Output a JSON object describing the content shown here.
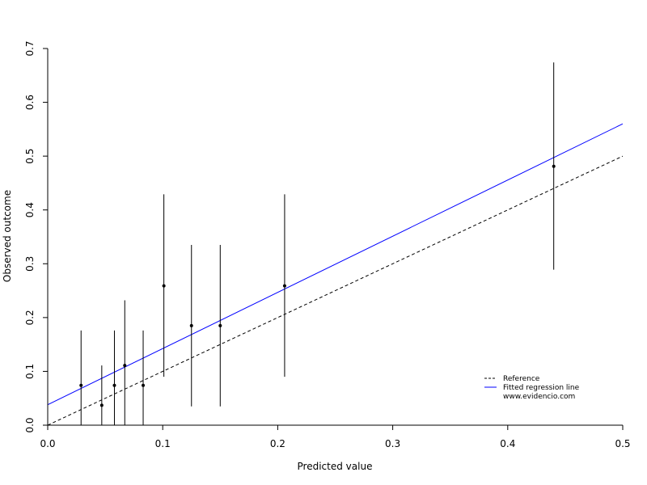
{
  "chart_data": {
    "type": "scatter",
    "title": "",
    "xlabel": "Predicted value",
    "ylabel": "Observed outcome",
    "xlim": [
      0,
      0.5
    ],
    "ylim": [
      0,
      0.7
    ],
    "x_ticks": [
      "0.0",
      "0.1",
      "0.2",
      "0.3",
      "0.4",
      "0.5"
    ],
    "y_ticks": [
      "0.0",
      "0.1",
      "0.2",
      "0.3",
      "0.4",
      "0.5",
      "0.6",
      "0.7"
    ],
    "grid": false,
    "legend_position": "bottom-right",
    "points": [
      {
        "x": 0.029,
        "y": 0.074,
        "lower": 0.0,
        "upper": 0.176
      },
      {
        "x": 0.047,
        "y": 0.037,
        "lower": 0.0,
        "upper": 0.111
      },
      {
        "x": 0.058,
        "y": 0.074,
        "lower": 0.0,
        "upper": 0.176
      },
      {
        "x": 0.067,
        "y": 0.111,
        "lower": 0.0,
        "upper": 0.232
      },
      {
        "x": 0.083,
        "y": 0.074,
        "lower": 0.0,
        "upper": 0.176
      },
      {
        "x": 0.101,
        "y": 0.259,
        "lower": 0.09,
        "upper": 0.429
      },
      {
        "x": 0.125,
        "y": 0.185,
        "lower": 0.035,
        "upper": 0.335
      },
      {
        "x": 0.15,
        "y": 0.185,
        "lower": 0.035,
        "upper": 0.335
      },
      {
        "x": 0.206,
        "y": 0.259,
        "lower": 0.09,
        "upper": 0.429
      },
      {
        "x": 0.44,
        "y": 0.481,
        "lower": 0.289,
        "upper": 0.674
      }
    ],
    "reference_line": {
      "name": "Reference",
      "intercept": 0,
      "slope": 1,
      "color": "#000000",
      "dashed": true
    },
    "regression_line": {
      "name": "Fitted regression line",
      "intercept": 0.038,
      "slope": 1.044,
      "color": "#0000ff"
    },
    "legend": {
      "reference": "Reference",
      "regression": "Fitted regression line",
      "source": "www.evidencio.com"
    }
  }
}
